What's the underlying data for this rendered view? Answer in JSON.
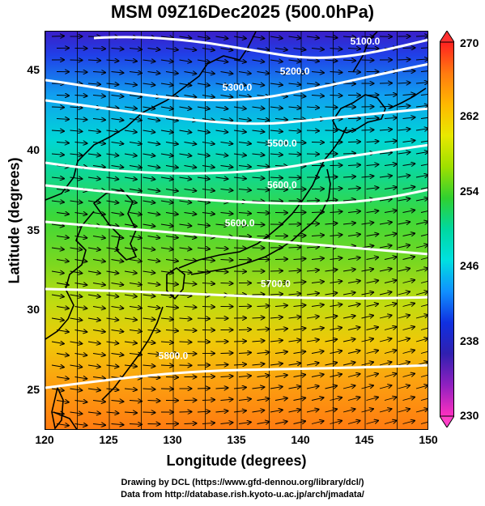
{
  "title": "MSM 09Z16Dec2025 (500.0hPa)",
  "map": {
    "x_axis": {
      "label": "Longitude (degrees)",
      "ticks": [
        120,
        125,
        130,
        135,
        140,
        145,
        150
      ]
    },
    "y_axis": {
      "label": "Latitude  (degrees)",
      "ticks": [
        25,
        30,
        35,
        40,
        45
      ]
    },
    "range": {
      "lon": [
        120,
        150
      ],
      "lat": [
        22.5,
        47.5
      ]
    },
    "contours": [
      {
        "label": "5100.0",
        "lon": 145,
        "lat": 46.7
      },
      {
        "label": "5200.0",
        "lon": 139.5,
        "lat": 44.8
      },
      {
        "label": "5300.0",
        "lon": 135,
        "lat": 43.8
      },
      {
        "label": "5500.0",
        "lon": 138.5,
        "lat": 40.3
      },
      {
        "label": "5600.0",
        "lon": 138.5,
        "lat": 37.7
      },
      {
        "label": "5600.0",
        "lon": 135.2,
        "lat": 35.3
      },
      {
        "label": "5700.0",
        "lon": 138,
        "lat": 31.5
      },
      {
        "label": "5800.0",
        "lon": 130,
        "lat": 27.0
      }
    ],
    "colors": {
      "contour": "#ffffff",
      "wind_vectors": "#000000",
      "coastline": "#000000"
    }
  },
  "colorbar": {
    "max_label": "270",
    "min_label": "230",
    "tick_labels": [
      "262",
      "254",
      "246",
      "238"
    ],
    "gradient": [
      "#ff2020",
      "#ff7a10",
      "#ffb800",
      "#e8e800",
      "#9fe000",
      "#30d030",
      "#00d8a0",
      "#00e0e0",
      "#1090ff",
      "#1030e0",
      "#3020b0",
      "#9020c0",
      "#ff30c0"
    ]
  },
  "credits": {
    "line1": "Drawing by DCL (https://www.gfd-dennou.org/library/dcl/)",
    "line2": "Data from http://database.rish.kyoto-u.ac.jp/arch/jmadata/"
  }
}
